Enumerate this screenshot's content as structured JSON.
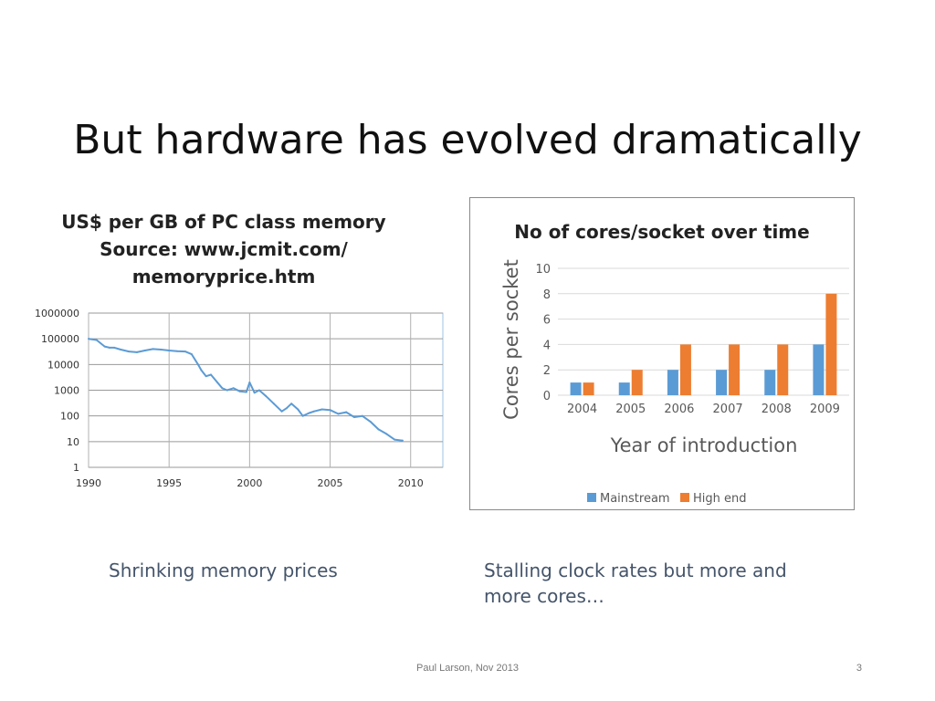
{
  "slide": {
    "title": "But hardware has evolved dramatically",
    "footer": "Paul Larson, Nov 2013",
    "page_number": "3",
    "caption_left": "Shrinking memory prices",
    "caption_right": "Stalling clock rates but more and more cores…"
  },
  "chart_data": [
    {
      "type": "line",
      "title_lines": [
        "US$ per GB of PC class memory",
        "Source: www.jcmit.com/",
        "memoryprice.htm"
      ],
      "xlabel": "",
      "ylabel": "",
      "scale_y": "log",
      "xlim": [
        1990,
        2012
      ],
      "ylim": [
        1,
        1000000
      ],
      "xticks": [
        "1990",
        "1995",
        "2000",
        "2005",
        "2010"
      ],
      "yticks": [
        "1",
        "10",
        "100",
        "1000",
        "10000",
        "100000",
        "1000000"
      ],
      "grid": "horizontal",
      "legend": "none",
      "color": "#5b9bd5",
      "series": [
        {
          "x": [
            1990,
            1990.5,
            1991,
            1991.3,
            1991.6,
            1992,
            1992.5,
            1993,
            1993.5,
            1994,
            1994.5,
            1995,
            1995.5,
            1996,
            1996.4,
            1996.8,
            1997,
            1997.3,
            1997.6,
            1998,
            1998.3,
            1998.6,
            1999,
            1999.4,
            1999.8,
            2000,
            2000.3,
            2000.6,
            2001,
            2001.5,
            2002,
            2002.3,
            2002.6,
            2003,
            2003.3,
            2003.7,
            2004,
            2004.5,
            2005,
            2005.5,
            2006,
            2006.5,
            2007,
            2007.5,
            2008,
            2008.5,
            2009,
            2009.5
          ],
          "y": [
            100000,
            90000,
            50000,
            45000,
            45000,
            38000,
            32000,
            30000,
            35000,
            40000,
            38000,
            35000,
            33000,
            32000,
            25000,
            10000,
            6000,
            3500,
            4000,
            2000,
            1200,
            1000,
            1200,
            900,
            850,
            2000,
            800,
            1000,
            600,
            300,
            150,
            200,
            300,
            180,
            100,
            130,
            150,
            180,
            170,
            120,
            140,
            90,
            100,
            60,
            30,
            20,
            12,
            11
          ]
        }
      ]
    },
    {
      "type": "bar",
      "title": "No of cores/socket over time",
      "xlabel": "Year of introduction",
      "ylabel": "Cores per socket",
      "ylim": [
        0,
        10
      ],
      "yticks": [
        "0",
        "2",
        "4",
        "6",
        "8",
        "10"
      ],
      "categories": [
        "2004",
        "2005",
        "2006",
        "2007",
        "2008",
        "2009"
      ],
      "grid": "horizontal",
      "legend": "bottom",
      "series": [
        {
          "name": "Mainstream",
          "values": [
            1,
            1,
            2,
            2,
            2,
            4
          ],
          "color": "#5b9bd5"
        },
        {
          "name": "High end",
          "values": [
            1,
            2,
            4,
            4,
            4,
            8
          ],
          "color": "#ed7d31"
        }
      ]
    }
  ]
}
